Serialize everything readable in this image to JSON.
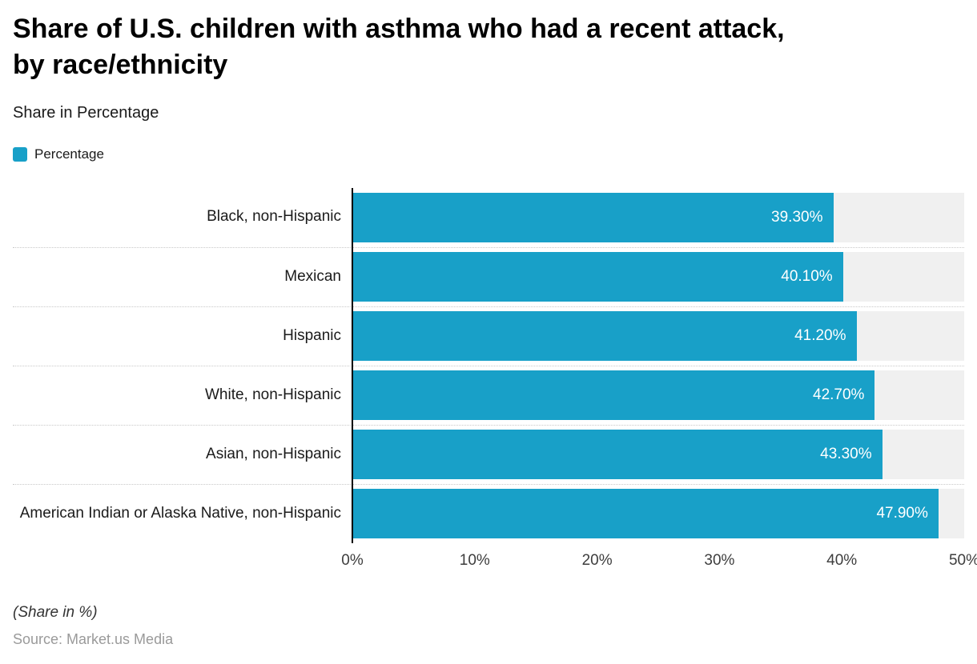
{
  "header": {
    "title": "Share of U.S. children with asthma who had a recent attack,\nby race/ethnicity",
    "subtitle": "Share in Percentage"
  },
  "legend": {
    "label": "Percentage"
  },
  "chart_data": {
    "type": "bar",
    "orientation": "horizontal",
    "title": "Share of U.S. children with asthma who had a recent attack, by race/ethnicity",
    "subtitle": "Share in Percentage",
    "series_name": "Percentage",
    "categories": [
      "Black, non-Hispanic",
      "Mexican",
      "Hispanic",
      "White, non-Hispanic",
      "Asian, non-Hispanic",
      "American Indian or Alaska Native, non-Hispanic"
    ],
    "values": [
      39.3,
      40.1,
      41.2,
      42.7,
      43.3,
      47.9
    ],
    "value_labels": [
      "39.30%",
      "40.10%",
      "41.20%",
      "42.70%",
      "43.30%",
      "47.90%"
    ],
    "xlim": [
      0,
      50
    ],
    "x_ticks": [
      "0%",
      "10%",
      "20%",
      "30%",
      "40%",
      "50%"
    ],
    "xlabel": "",
    "ylabel": "",
    "legend_position": "top-left",
    "grid": "dotted-row-separators",
    "bar_color": "#18a0c8",
    "track_color": "#f0f0f0",
    "axis_line_color": "#000000"
  },
  "footer": {
    "note": "(Share in %)",
    "source": "Source: Market.us Media"
  }
}
